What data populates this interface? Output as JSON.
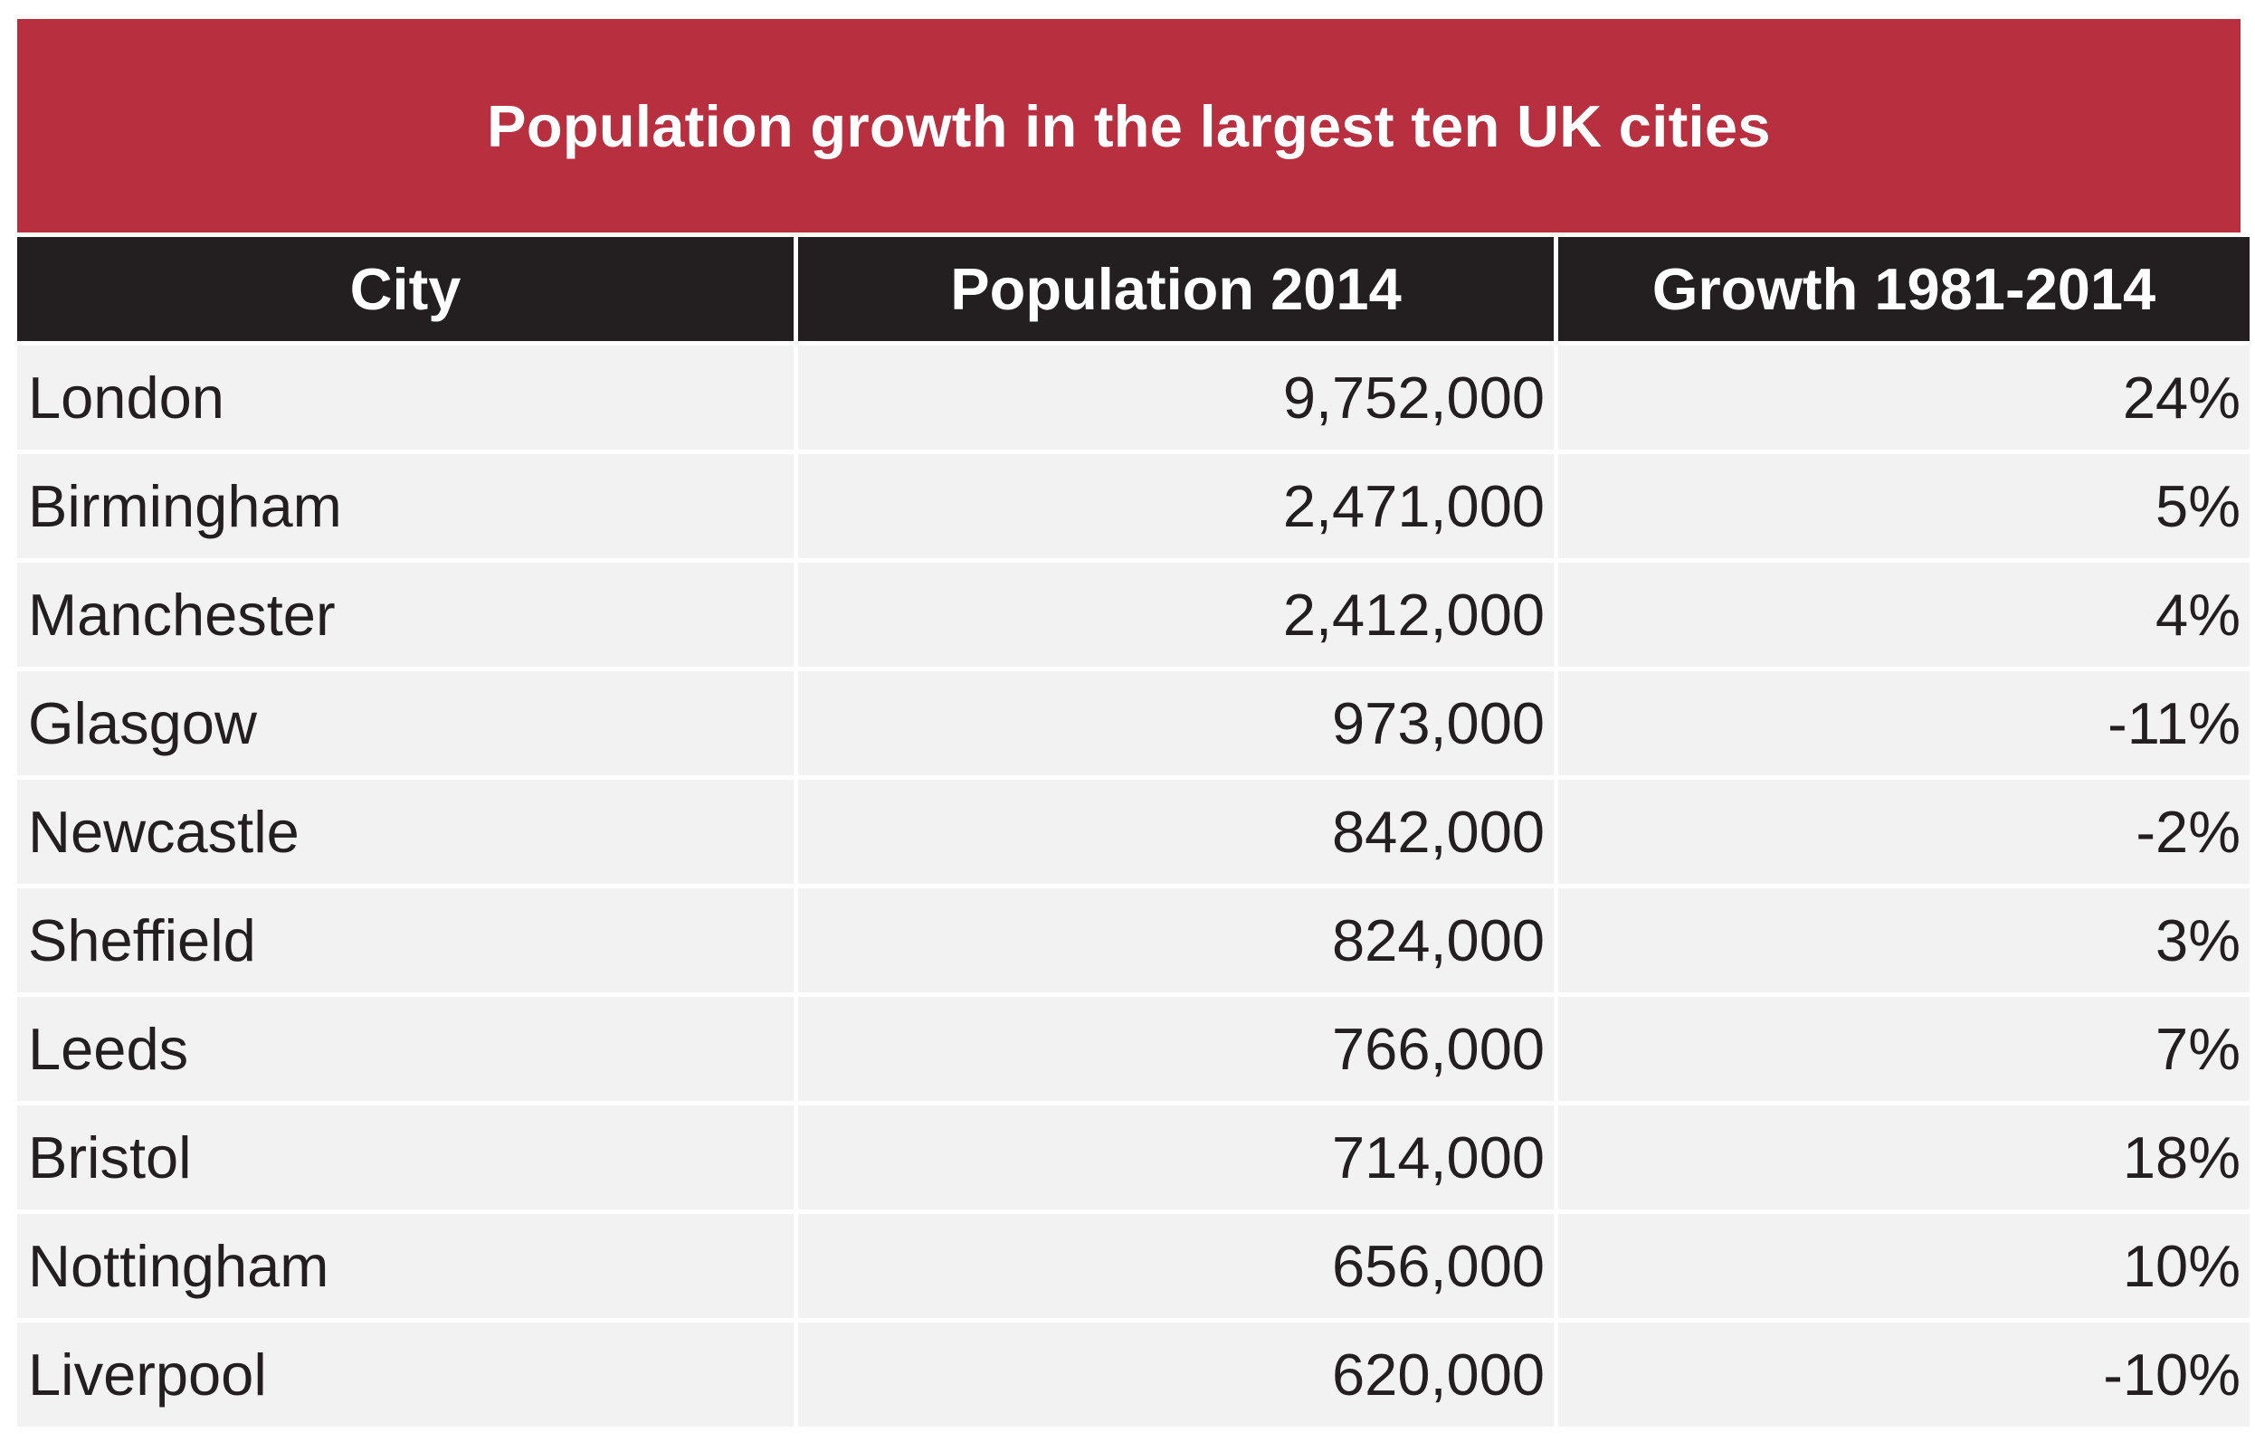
{
  "chart_data": {
    "type": "table",
    "title": "Population growth in the largest ten UK cities",
    "columns": [
      "City",
      "Population 2014",
      "Growth 1981-2014"
    ],
    "rows": [
      [
        "London",
        "9,752,000",
        "24%"
      ],
      [
        "Birmingham",
        "2,471,000",
        "5%"
      ],
      [
        "Manchester",
        "2,412,000",
        "4%"
      ],
      [
        "Glasgow",
        "973,000",
        "-11%"
      ],
      [
        "Newcastle",
        "842,000",
        "-2%"
      ],
      [
        "Sheffield",
        "824,000",
        "3%"
      ],
      [
        "Leeds",
        "766,000",
        "7%"
      ],
      [
        "Bristol",
        "714,000",
        "18%"
      ],
      [
        "Nottingham",
        "656,000",
        "10%"
      ],
      [
        "Liverpool",
        "620,000",
        "-10%"
      ]
    ],
    "colors": {
      "title_background": "#b82f40",
      "header_background": "#231f20",
      "row_background": "#f2f2f2",
      "text": "#231f20"
    }
  }
}
